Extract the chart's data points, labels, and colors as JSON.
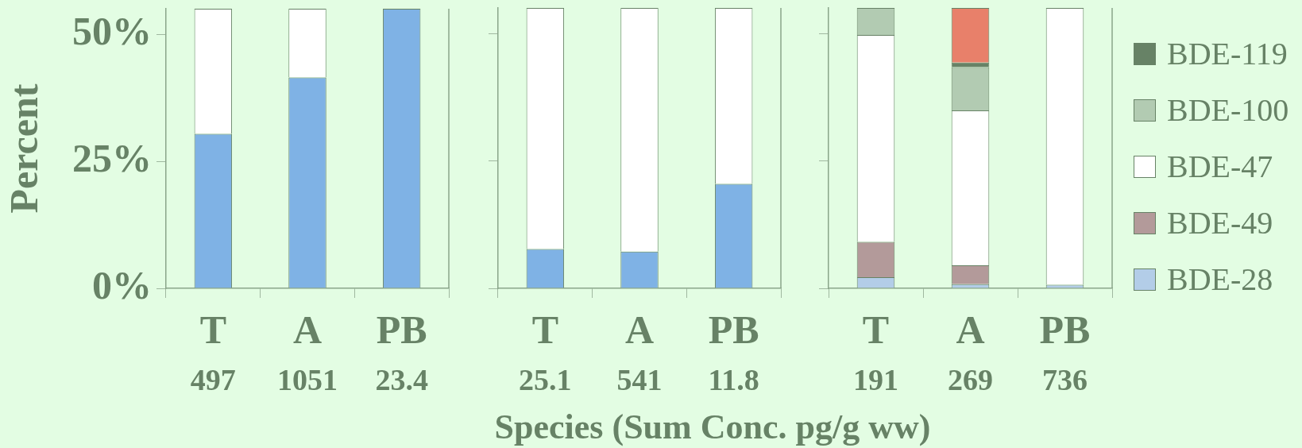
{
  "chart_data": [
    {
      "type": "bar",
      "stacked": true,
      "ylabel": "Percent",
      "categories": [
        "T",
        "A",
        "PB"
      ],
      "ylim": [
        0,
        55
      ],
      "yticks": [
        {
          "value": 0,
          "label": "0%"
        },
        {
          "value": 25,
          "label": "25%"
        },
        {
          "value": 50,
          "label": "50%"
        }
      ],
      "grid": false,
      "legend": false,
      "series": [
        {
          "color": "#7fb2e5",
          "values": [
            30.4,
            41.5,
            55
          ]
        },
        {
          "color": "#ffffff",
          "values": [
            24.6,
            13.5,
            null
          ]
        }
      ],
      "annotations": [
        "497",
        "1051",
        "23.4"
      ]
    },
    {
      "type": "bar",
      "stacked": true,
      "xlabel": "Species (Sum Conc. pg/g ww)",
      "categories": [
        "T",
        "A",
        "PB"
      ],
      "ylim": [
        0,
        55
      ],
      "yticks": [
        {
          "value": 0,
          "label": null
        },
        {
          "value": 25,
          "label": null
        },
        {
          "value": 50,
          "label": null
        }
      ],
      "grid": false,
      "legend": false,
      "tick_labels": "x",
      "series": [
        {
          "color": "#7fb2e5",
          "values": [
            7.7,
            7.2,
            20.5
          ]
        },
        {
          "color": "#ffffff",
          "values": [
            47.3,
            47.8,
            34.5
          ]
        }
      ],
      "annotations": [
        "25.1",
        "541",
        "11.8"
      ]
    },
    {
      "type": "bar",
      "stacked": true,
      "categories": [
        "T",
        "A",
        "PB"
      ],
      "ylim": [
        0,
        55
      ],
      "yticks": [
        {
          "value": 0,
          "label": null
        },
        {
          "value": 25,
          "label": null
        },
        {
          "value": 50,
          "label": null
        }
      ],
      "grid": false,
      "legend": "right",
      "tick_labels": "x",
      "series": [
        {
          "name": "BDE-28",
          "color": "#b3cde8",
          "values": [
            2.2,
            0.8,
            0.7
          ]
        },
        {
          "name": "BDE-49",
          "color": "#b39a9a",
          "values": [
            6.9,
            3.7,
            null
          ]
        },
        {
          "name": "BDE-47",
          "color": "#ffffff",
          "values": [
            40.6,
            30.4,
            54.3
          ]
        },
        {
          "name": "BDE-100",
          "color": "#b2cbb2",
          "values": [
            5.3,
            8.5,
            null
          ]
        },
        {
          "name": "BDE-119",
          "color": "#678266",
          "values": [
            null,
            0.9,
            null
          ]
        },
        {
          "color": "#e8806a",
          "values": [
            null,
            10.7,
            null
          ]
        }
      ],
      "annotations": [
        "191",
        "269",
        "736"
      ]
    }
  ]
}
